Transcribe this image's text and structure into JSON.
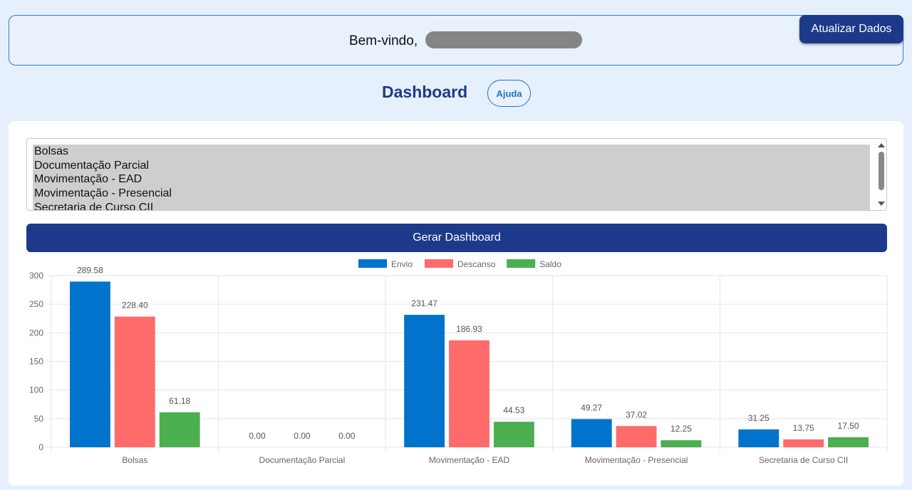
{
  "header": {
    "welcome": "Bem-vindo,",
    "refresh_label": "Atualizar Dados"
  },
  "page": {
    "title": "Dashboard",
    "help_label": "Ajuda"
  },
  "selector": {
    "options": [
      "Bolsas",
      "Documentação Parcial",
      "Movimentação - EAD",
      "Movimentação - Presencial",
      "Secretaria de Curso CII"
    ]
  },
  "generate_label": "Gerar Dashboard",
  "chart_data": {
    "type": "bar",
    "categories": [
      "Bolsas",
      "Documentação Parcial",
      "Movimentação - EAD",
      "Movimentação - Presencial",
      "Secretaria de Curso CII"
    ],
    "series": [
      {
        "name": "Envio",
        "color": "#0074cc",
        "values": [
          289.58,
          0.0,
          231.47,
          49.27,
          31.25
        ]
      },
      {
        "name": "Descanso",
        "color": "#ff6b6b",
        "values": [
          228.4,
          0.0,
          186.93,
          37.02,
          13.75
        ]
      },
      {
        "name": "Saldo",
        "color": "#4caf50",
        "values": [
          61.18,
          0.0,
          44.53,
          12.25,
          17.5
        ]
      }
    ],
    "data_labels": [
      [
        "289.58",
        "0.00",
        "231.47",
        "49.27",
        "31.25"
      ],
      [
        "228.40",
        "0.00",
        "186.93",
        "37.02",
        "13.75"
      ],
      [
        "61.18",
        "0.00",
        "44.53",
        "12.25",
        "17.50"
      ]
    ],
    "yticks": [
      "0",
      "50",
      "100",
      "150",
      "200",
      "250",
      "300"
    ],
    "ylim": [
      0,
      300
    ],
    "grid": true,
    "legend": "top-center"
  }
}
